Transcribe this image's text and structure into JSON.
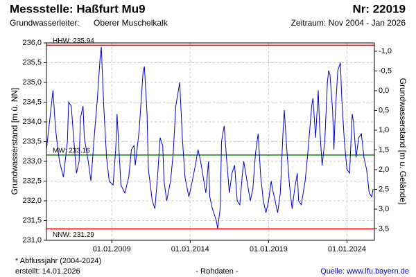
{
  "chart_data": {
    "type": "line",
    "title": "Messstelle: Haßfurt Mu9",
    "number": "Nr: 22019",
    "aquifer_label": "Grundwasserleiter:",
    "aquifer": "Oberer Muschelkalk",
    "period": "Zeitraum: Nov 2004 - Jan 2026",
    "ylabel": "Grundwasserstand [m ü. NN]",
    "y2label": "Grundwasserstand [m u. Gelände]",
    "footnote": "* Abflussjahr (2004-2024)",
    "created": "erstellt:  14.01.2026",
    "data_note": "- Rohdaten -",
    "source": "Quelle: www.lfu.bayern.de",
    "grid": true,
    "xlim": [
      "2004-11",
      "2025-10"
    ],
    "xticks": [
      {
        "value": "2009-01",
        "label": "01.01.2009"
      },
      {
        "value": "2014-01",
        "label": "01.01.2014"
      },
      {
        "value": "2019-01",
        "label": "01.01.2019"
      },
      {
        "value": "2024-01",
        "label": "01.01.2024"
      }
    ],
    "ylim": [
      231,
      236
    ],
    "yticks": [
      {
        "value": 231,
        "label": "231,0"
      },
      {
        "value": 231.5,
        "label": "231,5"
      },
      {
        "value": 232,
        "label": "232,0"
      },
      {
        "value": 232.5,
        "label": "232,5"
      },
      {
        "value": 233,
        "label": "233,0"
      },
      {
        "value": 233.5,
        "label": "233,5"
      },
      {
        "value": 234,
        "label": "234,0"
      },
      {
        "value": 234.5,
        "label": "234,5"
      },
      {
        "value": 235,
        "label": "235,0"
      },
      {
        "value": 235.5,
        "label": "235,5"
      },
      {
        "value": 236,
        "label": "236,0"
      }
    ],
    "y2lim": [
      3.79,
      -1.21
    ],
    "y2ticks": [
      {
        "value": -1,
        "label": "-1,0"
      },
      {
        "value": -0.5,
        "label": "-0,5"
      },
      {
        "value": 0,
        "label": "0,0"
      },
      {
        "value": 0.5,
        "label": "0,5"
      },
      {
        "value": 1,
        "label": "1,0"
      },
      {
        "value": 1.5,
        "label": "1,5"
      },
      {
        "value": 2,
        "label": "2,0"
      },
      {
        "value": 2.5,
        "label": "2,5"
      },
      {
        "value": 3,
        "label": "3,0"
      },
      {
        "value": 3.5,
        "label": "3,5"
      }
    ],
    "reference_lines": [
      {
        "label": "HHW: 235.94",
        "value": 235.94,
        "color": "#ff0000"
      },
      {
        "label": "MW: 233.16",
        "value": 233.16,
        "color": "#008000"
      },
      {
        "label": "NNW: 231.29",
        "value": 231.29,
        "color": "#ff0000"
      }
    ],
    "series": [
      {
        "color": "#0000cc",
        "x": [
          "2004-11",
          "2005-02",
          "2005-04",
          "2005-06",
          "2005-09",
          "2005-12",
          "2006-03",
          "2006-04",
          "2006-06",
          "2006-08",
          "2006-10",
          "2006-12",
          "2007-01",
          "2007-03",
          "2007-04",
          "2007-07",
          "2007-09",
          "2007-12",
          "2008-02",
          "2008-04",
          "2008-05",
          "2008-07",
          "2008-09",
          "2008-11",
          "2009-02",
          "2009-04",
          "2009-05",
          "2009-07",
          "2009-08",
          "2009-11",
          "2010-02",
          "2010-04",
          "2010-06",
          "2010-07",
          "2010-10",
          "2010-12",
          "2011-01",
          "2011-02",
          "2011-04",
          "2011-05",
          "2011-08",
          "2011-10",
          "2011-12",
          "2012-02",
          "2012-04",
          "2012-05",
          "2012-07",
          "2012-10",
          "2012-12",
          "2013-02",
          "2013-04",
          "2013-05",
          "2013-07",
          "2013-09",
          "2013-12",
          "2014-02",
          "2014-05",
          "2014-07",
          "2014-09",
          "2014-11",
          "2015-01",
          "2015-03",
          "2015-04",
          "2015-06",
          "2015-09",
          "2015-10",
          "2015-12",
          "2016-01",
          "2016-03",
          "2016-05",
          "2016-07",
          "2016-09",
          "2016-11",
          "2017-01",
          "2017-03",
          "2017-05",
          "2017-06",
          "2017-09",
          "2017-11",
          "2018-01",
          "2018-03",
          "2018-05",
          "2018-07",
          "2018-09",
          "2018-11",
          "2019-01",
          "2019-03",
          "2019-04",
          "2019-06",
          "2019-08",
          "2019-10",
          "2019-12",
          "2020-01",
          "2020-03",
          "2020-05",
          "2020-07",
          "2020-09",
          "2020-11",
          "2020-12",
          "2021-02",
          "2021-05",
          "2021-07",
          "2021-08",
          "2021-10",
          "2021-11",
          "2022-01",
          "2022-03",
          "2022-04",
          "2022-06",
          "2022-08",
          "2022-10",
          "2022-11",
          "2022-12",
          "2023-02",
          "2023-03",
          "2023-04",
          "2023-06",
          "2023-08",
          "2023-09",
          "2023-11",
          "2024-01",
          "2024-03",
          "2024-05",
          "2024-06",
          "2024-08",
          "2024-10",
          "2024-12",
          "2025-02",
          "2025-04",
          "2025-06",
          "2025-08",
          "2025-09"
        ],
        "values": [
          233.3,
          234.2,
          234.8,
          233.8,
          233.0,
          232.6,
          233.5,
          234.5,
          234.4,
          233.5,
          232.7,
          233.0,
          234.1,
          234.4,
          233.6,
          233.0,
          232.5,
          233.8,
          234.6,
          235.6,
          235.9,
          234.3,
          233.1,
          232.5,
          232.4,
          233.3,
          234.2,
          233.0,
          232.4,
          232.2,
          232.6,
          233.3,
          233.4,
          232.9,
          233.8,
          234.8,
          235.3,
          235.4,
          234.2,
          232.8,
          232.0,
          231.8,
          232.6,
          233.6,
          233.4,
          232.5,
          232.0,
          232.5,
          233.2,
          234.4,
          234.8,
          235.0,
          233.6,
          232.6,
          232.1,
          232.4,
          232.9,
          233.3,
          233.0,
          232.6,
          232.2,
          233.0,
          232.1,
          231.8,
          231.5,
          231.3,
          231.8,
          233.5,
          233.9,
          233.0,
          232.2,
          232.7,
          232.9,
          232.0,
          231.9,
          232.7,
          233.0,
          232.4,
          232.0,
          232.3,
          233.2,
          233.7,
          232.6,
          232.0,
          231.7,
          232.0,
          232.5,
          232.3,
          232.0,
          231.7,
          232.2,
          233.7,
          234.3,
          233.3,
          232.4,
          231.8,
          232.3,
          232.7,
          232.0,
          231.9,
          232.5,
          233.2,
          233.6,
          234.4,
          234.6,
          233.6,
          234.8,
          233.9,
          232.9,
          233.5,
          235.0,
          235.3,
          235.2,
          234.3,
          233.3,
          234.2,
          235.3,
          235.5,
          234.6,
          233.5,
          232.8,
          232.7,
          234.2,
          234.0,
          233.1,
          233.6,
          233.7,
          233.1,
          232.8,
          232.2,
          232.1,
          232.3
        ]
      }
    ]
  }
}
